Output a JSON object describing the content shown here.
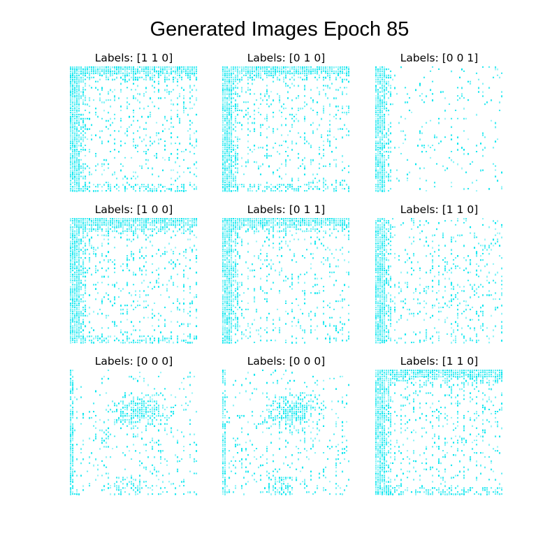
{
  "figure": {
    "title": "Generated Images Epoch 85",
    "pixel_color": "#00e5ee"
  },
  "panels": [
    {
      "label": "Labels: [1 1 0]",
      "labels": [
        1,
        1,
        0
      ],
      "pattern": "dense-left-top"
    },
    {
      "label": "Labels: [0 1 0]",
      "labels": [
        0,
        1,
        0
      ],
      "pattern": "dense-left-top"
    },
    {
      "label": "Labels: [0 0 1]",
      "labels": [
        0,
        0,
        1
      ],
      "pattern": "sparse-left"
    },
    {
      "label": "Labels: [1 0 0]",
      "labels": [
        1,
        0,
        0
      ],
      "pattern": "dense-left-top"
    },
    {
      "label": "Labels: [0 1 1]",
      "labels": [
        0,
        1,
        1
      ],
      "pattern": "medium-left-top"
    },
    {
      "label": "Labels: [1 1 0]",
      "labels": [
        1,
        1,
        0
      ],
      "pattern": "medium-left"
    },
    {
      "label": "Labels: [0 0 0]",
      "labels": [
        0,
        0,
        0
      ],
      "pattern": "center-blob"
    },
    {
      "label": "Labels: [0 0 0]",
      "labels": [
        0,
        0,
        0
      ],
      "pattern": "center-blob"
    },
    {
      "label": "Labels: [1 1 0]",
      "labels": [
        1,
        1,
        0
      ],
      "pattern": "dense-left-top"
    }
  ]
}
